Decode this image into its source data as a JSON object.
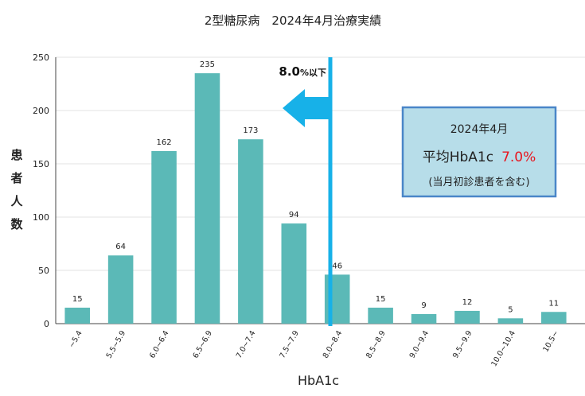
{
  "chart_data": {
    "type": "bar",
    "title": "2型糖尿病　2024年4月治療実績",
    "xlabel": "HbA1c",
    "ylabel": "患者人数",
    "ylim": [
      0,
      250
    ],
    "yticks": [
      0,
      50,
      100,
      150,
      200,
      250
    ],
    "grid": true,
    "categories": [
      "~5.4",
      "5.5~5.9",
      "6.0~6.4",
      "6.5~6.9",
      "7.0~7.4",
      "7.5~7.9",
      "8.0~8.4",
      "8.5~8.9",
      "9.0~9.4",
      "9.5~9.9",
      "10.0~10.4",
      "10.5~"
    ],
    "values": [
      15,
      64,
      162,
      235,
      173,
      94,
      46,
      15,
      9,
      12,
      5,
      11
    ],
    "bar_color": "#5bb9b7",
    "threshold": {
      "label_value": "8.0",
      "label_suffix": "%以下",
      "line_color": "#17b1e8",
      "arrow_color": "#17b1e8"
    },
    "annotation_box": {
      "line1": "2024年4月",
      "line2_prefix": "平均HbA1c",
      "line2_value": "7.0%",
      "line3": "(当月初診患者を含む)",
      "fill": "#b7dde9",
      "border": "#4a86c8",
      "value_color": "#e8141d"
    }
  }
}
